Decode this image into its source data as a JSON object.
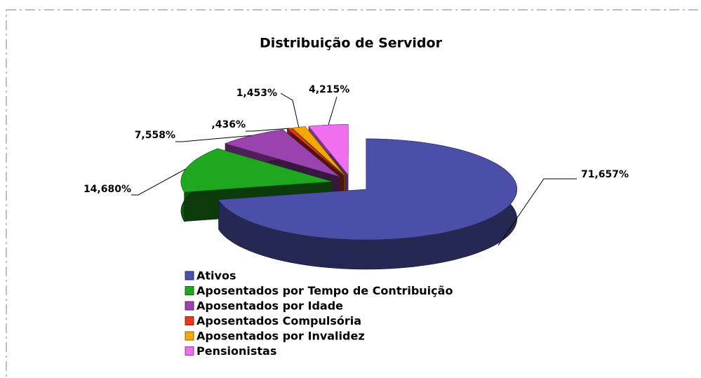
{
  "chart_data": {
    "type": "pie",
    "title": "Distribuição de Servidor",
    "categories": [
      "Ativos",
      "Aposentados por Tempo de Contribuição",
      "Aposentados por Idade",
      "Aposentados Compulsória",
      "Aposentados por Invalidez",
      "Pensionistas"
    ],
    "values": [
      71.657,
      14.68,
      7.558,
      0.436,
      1.453,
      4.215
    ],
    "value_labels": [
      "71,657%",
      "14,680%",
      "7,558%",
      ",436%",
      "1,453%",
      "4,215%"
    ],
    "colors": [
      "#4b4fa8",
      "#1fa81f",
      "#9a42ad",
      "#e8361f",
      "#f5a800",
      "#f06ef0"
    ],
    "legend": "bottom"
  }
}
